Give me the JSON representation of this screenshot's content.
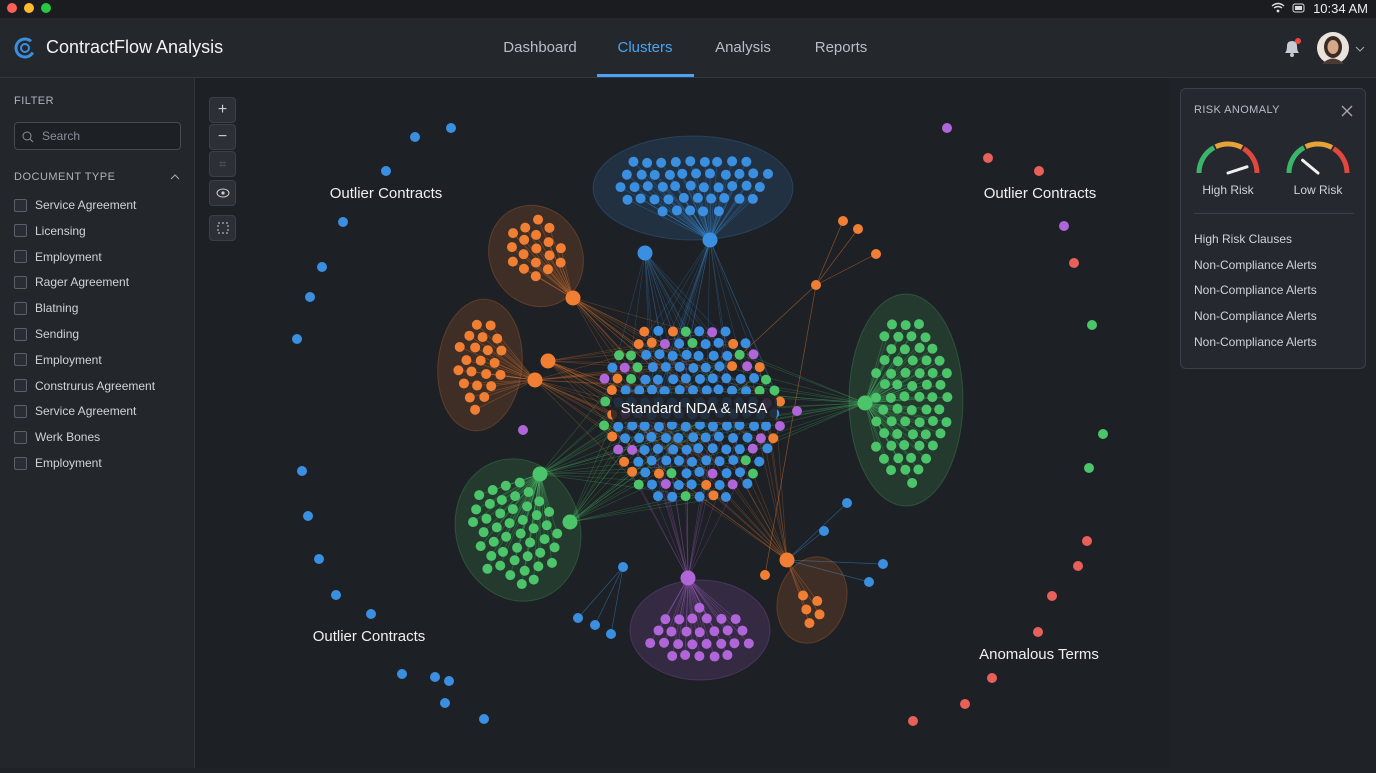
{
  "status_bar": {
    "time": "10:34 AM"
  },
  "header": {
    "title": "ContractFlow Analysis",
    "nav": [
      "Dashboard",
      "Clusters",
      "Analysis",
      "Reports"
    ],
    "active_nav": 1
  },
  "sidebar": {
    "filter_label": "FILTER",
    "search_placeholder": "Search",
    "section_title": "DOCUMENT TYPE",
    "items": [
      "Service Agreement",
      "Licensing",
      "Employment",
      "Rager Agreement",
      "Blatning",
      "Sending",
      "Employment",
      "Construrus Agreement",
      "Service Agreement",
      "Werk Bones",
      "Employment"
    ]
  },
  "graph": {
    "center_label": "Standard NDA & MSA",
    "labels": [
      "Outlier Contracts",
      "Outlier Contracts",
      "Outlier Contracts",
      "Anomalous Terms"
    ]
  },
  "panel": {
    "title": "RISK ANOMALY",
    "gauges": [
      "High Risk",
      "Low Risk"
    ],
    "items": [
      "High Risk Clauses",
      "Non-Compliance Alerts",
      "Non-Compliance Alerts",
      "Non-Compliance Alerts",
      "Non-Compliance Alerts"
    ]
  }
}
